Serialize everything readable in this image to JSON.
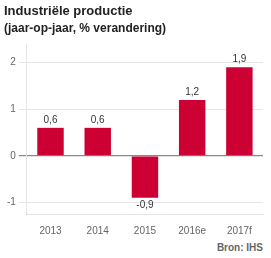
{
  "chart_data": {
    "type": "bar",
    "title": "Industriële productie",
    "subtitle": "(jaar-op-jaar, % verandering)",
    "annotations": [
      "Bron: IHS"
    ],
    "categories": [
      "2013",
      "2014",
      "2015",
      "2016e",
      "2017f"
    ],
    "values": [
      0.6,
      0.6,
      -0.9,
      1.2,
      1.9
    ],
    "value_labels": [
      "0,6",
      "0,6",
      "-0,9",
      "1,2",
      "1,9"
    ],
    "data_labels": true,
    "color": "#cc0033",
    "ylim": [
      -1.25,
      2.4
    ],
    "yticks": [
      -1,
      0,
      1,
      2
    ],
    "grid": true
  }
}
